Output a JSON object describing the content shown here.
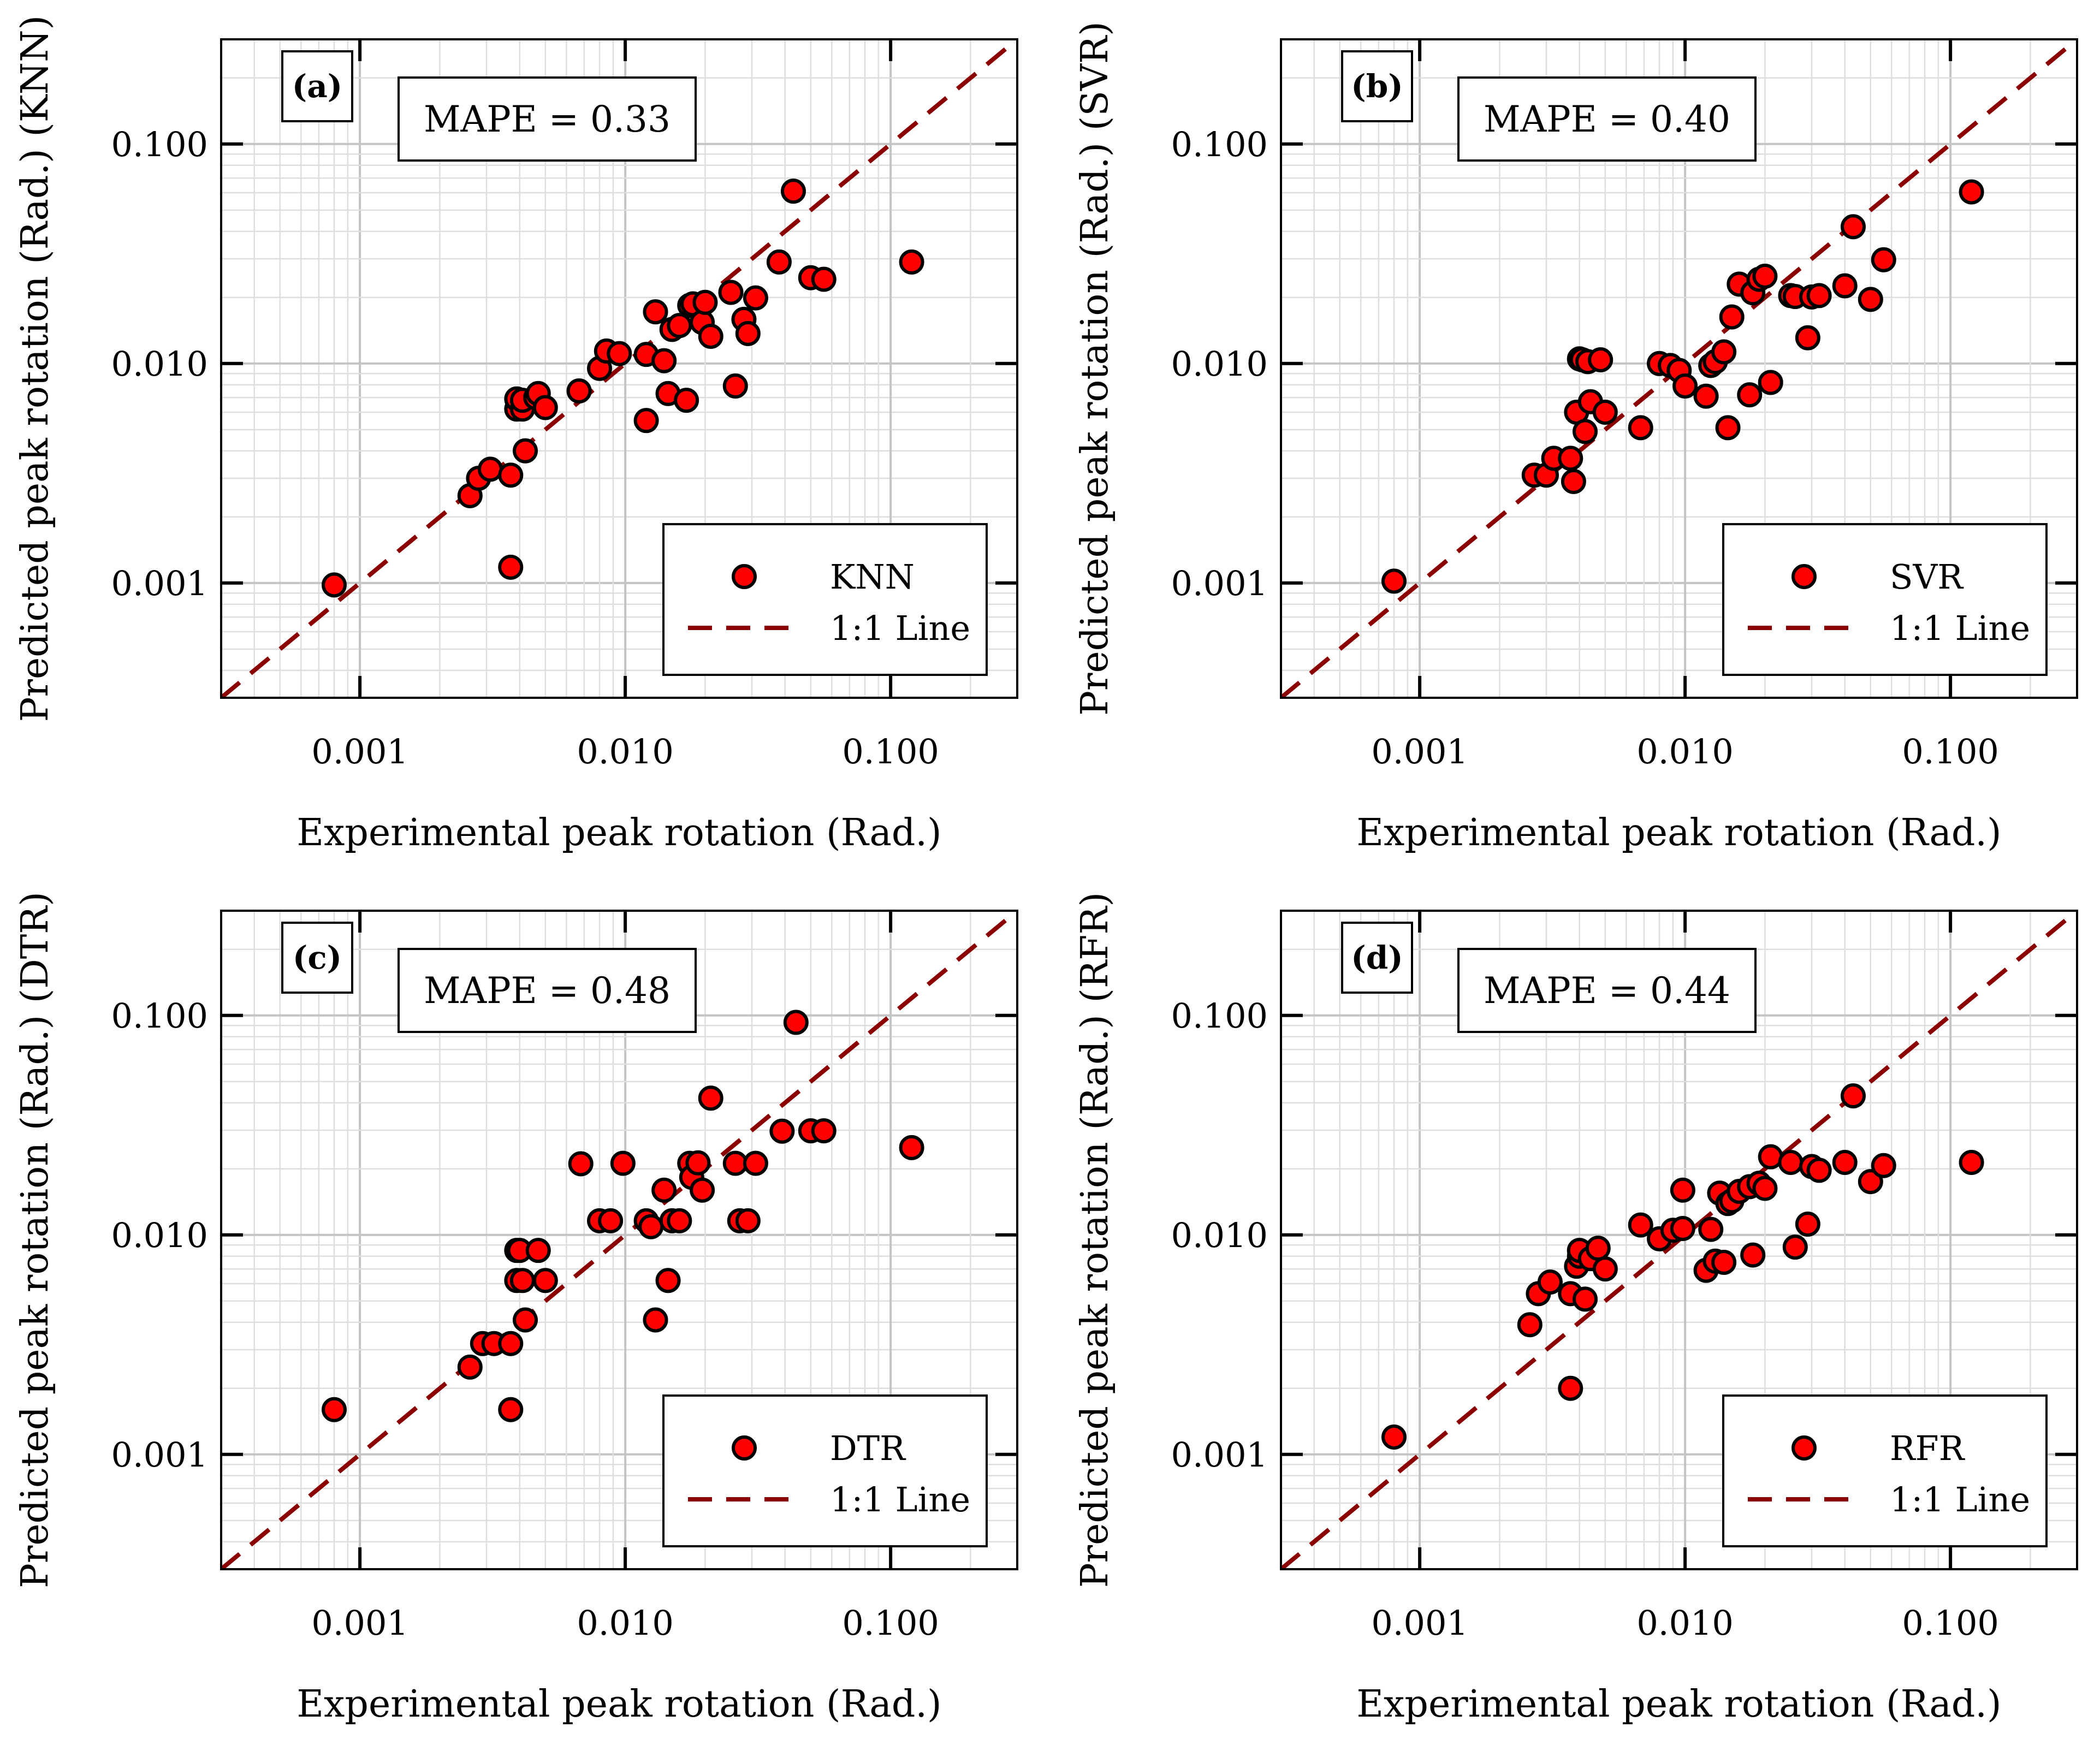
{
  "chart_data": [
    {
      "type": "scatter",
      "panel_label": "(a)",
      "annotation": "MAPE = 0.33",
      "xlabel": "Experimental peak rotation (Rad.)",
      "ylabel": "Predicted peak rotation (Rad.) (KNN)",
      "xscale": "log",
      "yscale": "log",
      "xlim": [
        0.0003,
        0.3
      ],
      "ylim": [
        0.0003,
        0.3
      ],
      "xticks": [
        0.001,
        0.01,
        0.1
      ],
      "yticks": [
        0.001,
        0.01,
        0.1
      ],
      "xtick_labels": [
        "0.001",
        "0.010",
        "0.100"
      ],
      "ytick_labels": [
        "0.001",
        "0.010",
        "0.100"
      ],
      "grid": true,
      "legend_position": "bottom-right",
      "series": [
        {
          "name": "KNN",
          "kind": "points",
          "color": "#ff0000",
          "x": [
            0.0008,
            0.0026,
            0.0028,
            0.0031,
            0.0037,
            0.0037,
            0.0039,
            0.0039,
            0.0041,
            0.0041,
            0.0042,
            0.0046,
            0.0047,
            0.005,
            0.0067,
            0.008,
            0.0085,
            0.0095,
            0.012,
            0.012,
            0.013,
            0.014,
            0.0145,
            0.015,
            0.016,
            0.017,
            0.0175,
            0.018,
            0.0195,
            0.02,
            0.021,
            0.025,
            0.026,
            0.028,
            0.029,
            0.031,
            0.038,
            0.043,
            0.05,
            0.056,
            0.12
          ],
          "y": [
            0.00098,
            0.0025,
            0.003,
            0.0033,
            0.00118,
            0.0031,
            0.0062,
            0.0069,
            0.0062,
            0.0068,
            0.004,
            0.007,
            0.0073,
            0.0063,
            0.0075,
            0.0095,
            0.0114,
            0.0111,
            0.0055,
            0.011,
            0.0172,
            0.0103,
            0.0073,
            0.0143,
            0.0149,
            0.0068,
            0.0184,
            0.0187,
            0.0154,
            0.019,
            0.0133,
            0.0211,
            0.0079,
            0.0159,
            0.0137,
            0.0199,
            0.029,
            0.061,
            0.0246,
            0.0242,
            0.029
          ]
        },
        {
          "name": "1:1 Line",
          "kind": "line",
          "color": "#8b0000",
          "x": [
            0.0003,
            0.3
          ],
          "y": [
            0.0003,
            0.3
          ]
        }
      ]
    },
    {
      "type": "scatter",
      "panel_label": "(b)",
      "annotation": "MAPE = 0.40",
      "xlabel": "Experimental peak rotation (Rad.)",
      "ylabel": "Predicted peak rotation (Rad.) (SVR)",
      "xscale": "log",
      "yscale": "log",
      "xlim": [
        0.0003,
        0.3
      ],
      "ylim": [
        0.0003,
        0.3
      ],
      "xticks": [
        0.001,
        0.01,
        0.1
      ],
      "yticks": [
        0.001,
        0.01,
        0.1
      ],
      "xtick_labels": [
        "0.001",
        "0.010",
        "0.100"
      ],
      "ytick_labels": [
        "0.001",
        "0.010",
        "0.100"
      ],
      "grid": true,
      "legend_position": "bottom-right",
      "series": [
        {
          "name": "SVR",
          "kind": "points",
          "color": "#ff0000",
          "x": [
            0.0008,
            0.0027,
            0.003,
            0.0032,
            0.0037,
            0.0038,
            0.0039,
            0.004,
            0.0041,
            0.0042,
            0.0043,
            0.0044,
            0.0048,
            0.005,
            0.0068,
            0.008,
            0.0088,
            0.0095,
            0.01,
            0.012,
            0.0125,
            0.013,
            0.014,
            0.0145,
            0.015,
            0.016,
            0.0175,
            0.018,
            0.019,
            0.02,
            0.021,
            0.025,
            0.026,
            0.029,
            0.03,
            0.032,
            0.04,
            0.043,
            0.05,
            0.056,
            0.12
          ],
          "y": [
            0.00102,
            0.0031,
            0.0031,
            0.0037,
            0.0037,
            0.0029,
            0.006,
            0.0105,
            0.0104,
            0.0049,
            0.0102,
            0.0067,
            0.0104,
            0.006,
            0.0051,
            0.01,
            0.0098,
            0.0093,
            0.0079,
            0.0071,
            0.0098,
            0.0102,
            0.0113,
            0.0051,
            0.0163,
            0.023,
            0.0072,
            0.021,
            0.0242,
            0.025,
            0.0082,
            0.0204,
            0.0202,
            0.0131,
            0.0201,
            0.0204,
            0.0226,
            0.042,
            0.0196,
            0.0297,
            0.0605
          ]
        },
        {
          "name": "1:1 Line",
          "kind": "line",
          "color": "#8b0000",
          "x": [
            0.0003,
            0.3
          ],
          "y": [
            0.0003,
            0.3
          ]
        }
      ]
    },
    {
      "type": "scatter",
      "panel_label": "(c)",
      "annotation": "MAPE = 0.48",
      "xlabel": "Experimental peak rotation (Rad.)",
      "ylabel": "Predicted peak rotation (Rad.) (DTR)",
      "xscale": "log",
      "yscale": "log",
      "xlim": [
        0.0003,
        0.3
      ],
      "ylim": [
        0.0003,
        0.3
      ],
      "xticks": [
        0.001,
        0.01,
        0.1
      ],
      "yticks": [
        0.001,
        0.01,
        0.1
      ],
      "xtick_labels": [
        "0.001",
        "0.010",
        "0.100"
      ],
      "ytick_labels": [
        "0.001",
        "0.010",
        "0.100"
      ],
      "grid": true,
      "legend_position": "bottom-right",
      "series": [
        {
          "name": "DTR",
          "kind": "points",
          "color": "#ff0000",
          "x": [
            0.0008,
            0.0026,
            0.0029,
            0.0032,
            0.0037,
            0.0037,
            0.0039,
            0.0039,
            0.004,
            0.0041,
            0.0042,
            0.0047,
            0.005,
            0.0068,
            0.008,
            0.0088,
            0.0098,
            0.012,
            0.0125,
            0.013,
            0.014,
            0.0145,
            0.015,
            0.016,
            0.0175,
            0.0178,
            0.0188,
            0.0195,
            0.021,
            0.026,
            0.027,
            0.029,
            0.031,
            0.039,
            0.044,
            0.05,
            0.056,
            0.12
          ],
          "y": [
            0.0016,
            0.0025,
            0.0032,
            0.0032,
            0.0016,
            0.0032,
            0.0085,
            0.0062,
            0.0085,
            0.0062,
            0.0041,
            0.0085,
            0.0062,
            0.0211,
            0.0116,
            0.0116,
            0.0212,
            0.0116,
            0.0109,
            0.0041,
            0.016,
            0.0062,
            0.0116,
            0.0116,
            0.0212,
            0.0183,
            0.0213,
            0.016,
            0.042,
            0.0212,
            0.0116,
            0.0116,
            0.0212,
            0.0297,
            0.093,
            0.0298,
            0.0298,
            0.025
          ]
        },
        {
          "name": "1:1 Line",
          "kind": "line",
          "color": "#8b0000",
          "x": [
            0.0003,
            0.3
          ],
          "y": [
            0.0003,
            0.3
          ]
        }
      ]
    },
    {
      "type": "scatter",
      "panel_label": "(d)",
      "annotation": "MAPE = 0.44",
      "xlabel": "Experimental peak rotation (Rad.)",
      "ylabel": "Predicted peak rotation (Rad.) (RFR)",
      "xscale": "log",
      "yscale": "log",
      "xlim": [
        0.0003,
        0.3
      ],
      "ylim": [
        0.0003,
        0.3
      ],
      "xticks": [
        0.001,
        0.01,
        0.1
      ],
      "yticks": [
        0.001,
        0.01,
        0.1
      ],
      "xtick_labels": [
        "0.001",
        "0.010",
        "0.100"
      ],
      "ytick_labels": [
        "0.001",
        "0.010",
        "0.100"
      ],
      "grid": true,
      "legend_position": "bottom-right",
      "series": [
        {
          "name": "RFR",
          "kind": "points",
          "color": "#ff0000",
          "x": [
            0.0008,
            0.0026,
            0.0028,
            0.0031,
            0.0037,
            0.0037,
            0.0039,
            0.004,
            0.004,
            0.0042,
            0.0044,
            0.0047,
            0.005,
            0.0068,
            0.008,
            0.009,
            0.0098,
            0.0098,
            0.012,
            0.0125,
            0.013,
            0.0135,
            0.014,
            0.0145,
            0.015,
            0.016,
            0.0175,
            0.018,
            0.019,
            0.02,
            0.021,
            0.025,
            0.026,
            0.029,
            0.03,
            0.032,
            0.04,
            0.043,
            0.05,
            0.056,
            0.12
          ],
          "y": [
            0.0012,
            0.0039,
            0.0054,
            0.0061,
            0.002,
            0.0054,
            0.0072,
            0.008,
            0.0085,
            0.0051,
            0.0078,
            0.0087,
            0.007,
            0.0111,
            0.0096,
            0.0105,
            0.0107,
            0.016,
            0.0069,
            0.0106,
            0.0076,
            0.0155,
            0.0075,
            0.0139,
            0.0143,
            0.0158,
            0.0166,
            0.0081,
            0.0172,
            0.0163,
            0.0227,
            0.0214,
            0.0088,
            0.0112,
            0.0205,
            0.0197,
            0.0214,
            0.043,
            0.0175,
            0.0207,
            0.0214
          ]
        },
        {
          "name": "1:1 Line",
          "kind": "line",
          "color": "#8b0000",
          "x": [
            0.0003,
            0.3
          ],
          "y": [
            0.0003,
            0.3
          ]
        }
      ]
    }
  ]
}
